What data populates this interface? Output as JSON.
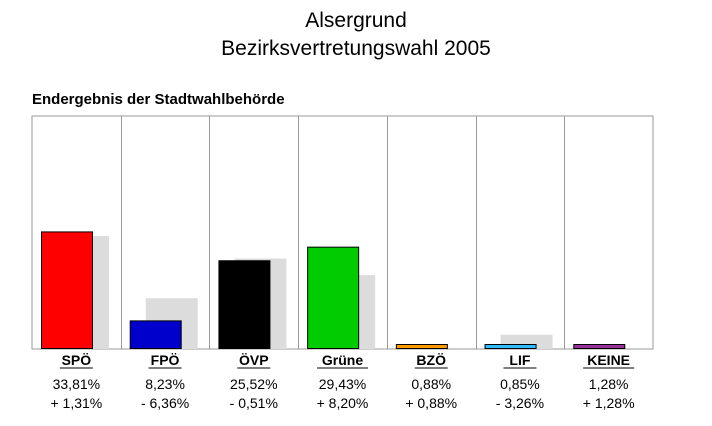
{
  "title": "Alsergrund",
  "subtitle": "Bezirksvertretungswahl 2005",
  "source_note": "Endergebnis der Stadtwahlbehörde",
  "chart_data": {
    "type": "bar",
    "title": "Alsergrund Bezirksvertretungswahl 2005",
    "categories": [
      "SPÖ",
      "FPÖ",
      "ÖVP",
      "Grüne",
      "BZÖ",
      "LIF",
      "KEINE"
    ],
    "series": [
      {
        "values": [
          33.81,
          8.23,
          25.52,
          29.43,
          0.88,
          0.85,
          1.28
        ],
        "color": [
          "#ff0000",
          "#0000cc",
          "#000000",
          "#00cc00",
          "#ff9900",
          "#33bbff",
          "#993399"
        ]
      },
      {
        "values": [
          32.5,
          14.59,
          26.03,
          21.23,
          0.0,
          4.11,
          0.0
        ],
        "color": "#dcdcdc"
      }
    ],
    "labels_percent": [
      "33,81%",
      "8,23%",
      "25,52%",
      "29,43%",
      "0,88%",
      "0,85%",
      "1,28%"
    ],
    "labels_change": [
      "+ 1,31%",
      "- 6,36%",
      "- 0,51%",
      "+ 8,20%",
      "+ 0,88%",
      "- 3,26%",
      "+ 1,28%"
    ],
    "ylim": [
      0,
      67
    ],
    "grid": false
  }
}
